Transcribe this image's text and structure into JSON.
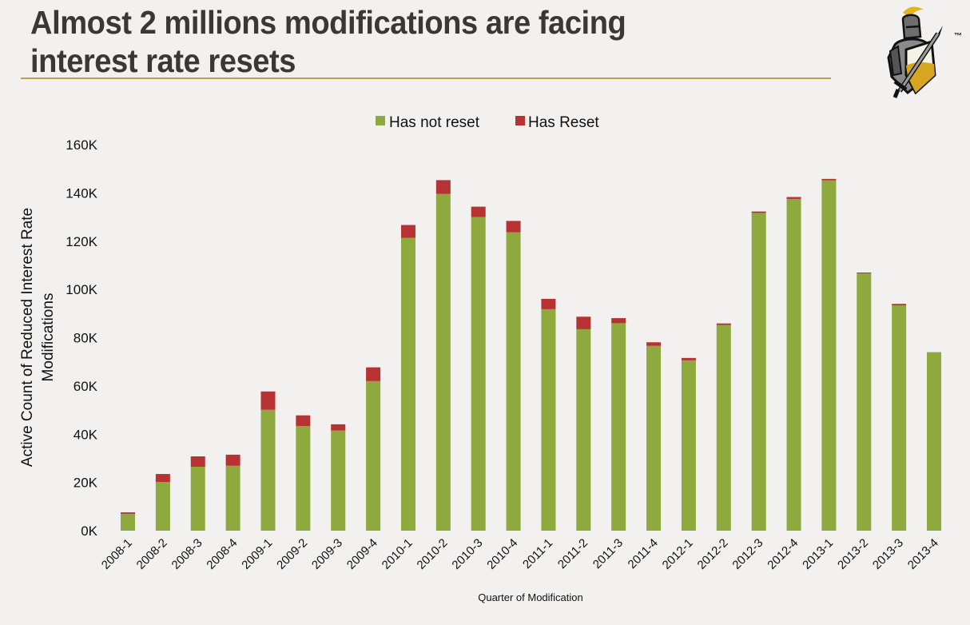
{
  "slide": {
    "title_line1": "Almost 2 millions modifications are facing",
    "title_line2": "interest rate resets",
    "logo": "knight-logo-icon",
    "logo_mark": "™",
    "rule_color": "#b9a24e"
  },
  "chart_data": {
    "type": "bar",
    "stacked": true,
    "title": "",
    "xlabel": "Quarter of Modification",
    "ylabel_line1": "Active Count of Reduced Interest Rate",
    "ylabel_line2": "Modifications",
    "ylim": [
      0,
      160000
    ],
    "yticks": [
      0,
      20000,
      40000,
      60000,
      80000,
      100000,
      120000,
      140000,
      160000
    ],
    "ytick_labels": [
      "0K",
      "20K",
      "40K",
      "60K",
      "80K",
      "100K",
      "120K",
      "140K",
      "160K"
    ],
    "grid": false,
    "legend_position": "top-center",
    "categories": [
      "2008-1",
      "2008-2",
      "2008-3",
      "2008-4",
      "2009-1",
      "2009-2",
      "2009-3",
      "2009-4",
      "2010-1",
      "2010-2",
      "2010-3",
      "2010-4",
      "2011-1",
      "2011-2",
      "2011-3",
      "2011-4",
      "2012-1",
      "2012-2",
      "2012-3",
      "2012-4",
      "2013-1",
      "2013-2",
      "2013-3",
      "2013-4"
    ],
    "series": [
      {
        "name": "Has not reset",
        "color": "#8ea93e",
        "values": [
          7000,
          20200,
          26500,
          26900,
          50100,
          43400,
          41500,
          62000,
          121400,
          139600,
          130000,
          123700,
          91800,
          83500,
          86000,
          76600,
          70600,
          85300,
          131700,
          137500,
          145200,
          106600,
          93400,
          74000
        ]
      },
      {
        "name": "Has Reset",
        "color": "#b73333",
        "values": [
          600,
          3300,
          4300,
          4600,
          7600,
          4400,
          2600,
          5700,
          5300,
          5700,
          4300,
          4700,
          4300,
          5200,
          2100,
          1500,
          1000,
          600,
          600,
          800,
          600,
          400,
          600,
          0
        ]
      }
    ]
  }
}
